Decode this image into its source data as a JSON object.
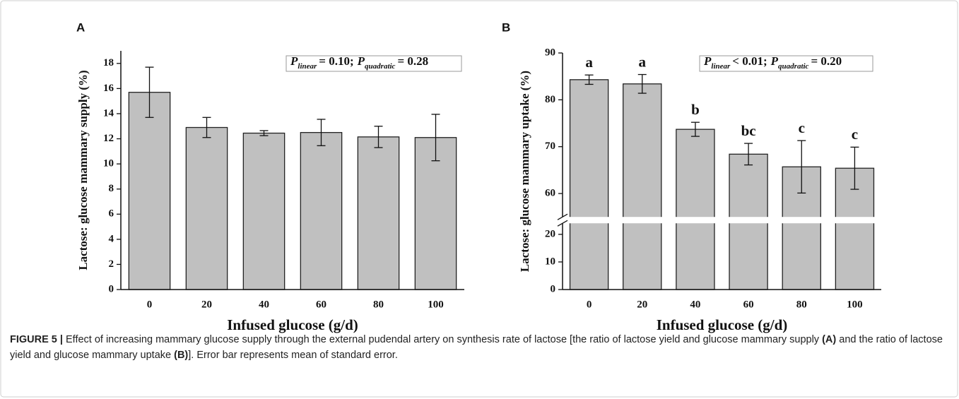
{
  "chart_data": [
    {
      "type": "bar",
      "panel_label": "A",
      "y_label": "Lactose: glucose mammary supply (%)",
      "x_label": "Infused glucose (g/d)",
      "annotation": [
        {
          "symbol": "P",
          "subscript": "linear",
          "text": "= 0.10;"
        },
        {
          "symbol": "P",
          "subscript": "quadratic",
          "text": "= 0.28"
        }
      ],
      "categories": [
        "0",
        "20",
        "40",
        "60",
        "80",
        "100"
      ],
      "values": [
        15.7,
        12.9,
        12.45,
        12.5,
        12.15,
        12.1
      ],
      "errors": [
        2.0,
        0.8,
        0.2,
        1.05,
        0.85,
        1.85
      ],
      "color": "#c0c0c0",
      "ylim": [
        0,
        19
      ],
      "yticks": [
        0,
        2,
        4,
        6,
        8,
        10,
        12,
        14,
        16,
        18
      ]
    },
    {
      "type": "bar",
      "panel_label": "B",
      "y_label": "Lactose: glucose mammary uptake (%)",
      "x_label": "Infused glucose (g/d)",
      "annotation": [
        {
          "symbol": "P",
          "subscript": "linear",
          "text": "< 0.01;"
        },
        {
          "symbol": "P",
          "subscript": "quadratic",
          "text": "= 0.20"
        }
      ],
      "categories": [
        "0",
        "20",
        "40",
        "60",
        "80",
        "100"
      ],
      "values": [
        84.3,
        83.4,
        73.7,
        68.4,
        65.7,
        65.4
      ],
      "errors": [
        1.0,
        2.0,
        1.5,
        2.3,
        5.6,
        4.5
      ],
      "letters": [
        "a",
        "a",
        "b",
        "bc",
        "c",
        "c"
      ],
      "color": "#c0c0c0",
      "ylim": [
        0,
        90
      ],
      "y_break": [
        24,
        55
      ],
      "yticks": [
        0,
        10,
        20,
        60,
        70,
        80,
        90
      ]
    }
  ],
  "caption": [
    "FIGURE 5 |",
    "Effect of increasing mammary glucose supply through the external pudendal artery on synthesis rate of lactose [the ratio of lactose yield and glucose mammary supply",
    "(A)",
    "and the ratio of lactose yield and glucose mammary uptake",
    "(B)",
    "]. Error bar represents mean of standard error."
  ]
}
